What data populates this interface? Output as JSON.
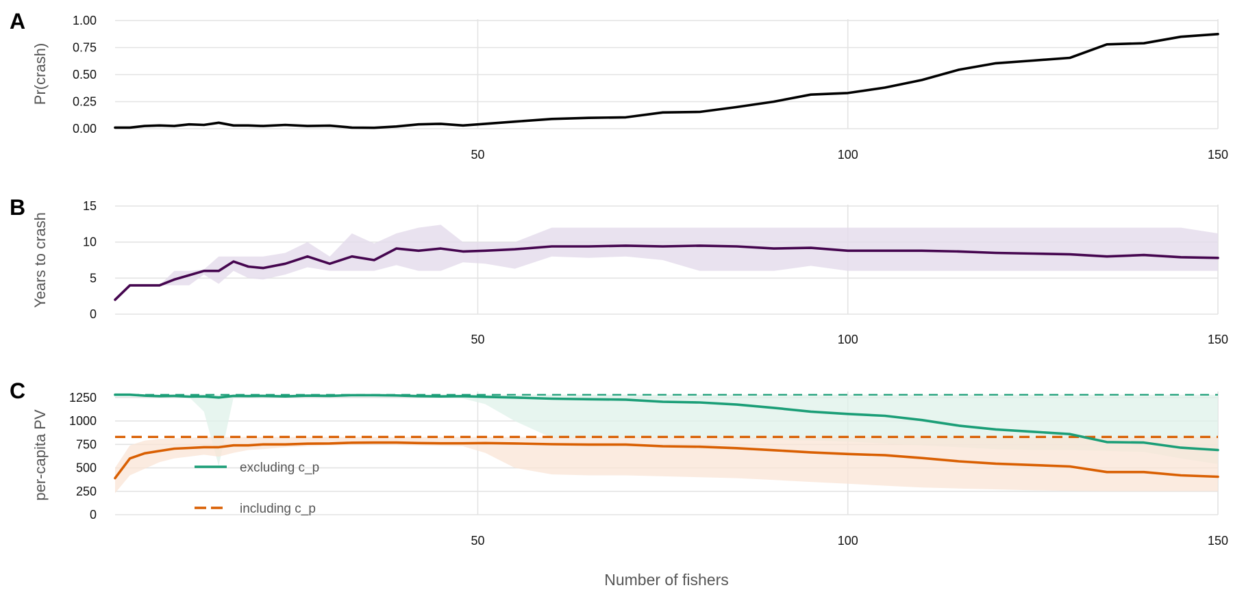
{
  "figure": {
    "xlabel": "Number of fishers"
  },
  "chart_data": [
    {
      "panel": "A",
      "type": "line",
      "ylabel": "Pr(crash)",
      "xlim": [
        1,
        150
      ],
      "ylim": [
        0,
        1
      ],
      "xticks": [
        50,
        100,
        150
      ],
      "yticks": [
        0,
        0.25,
        0.5,
        0.75,
        1.0
      ],
      "ytick_labels": [
        "0.00",
        "0.25",
        "0.50",
        "0.75",
        "1.00"
      ],
      "grid": true,
      "color": "#000000",
      "x": [
        1,
        3,
        5,
        7,
        9,
        11,
        13,
        15,
        17,
        19,
        21,
        24,
        27,
        30,
        33,
        36,
        39,
        42,
        45,
        48,
        51,
        55,
        60,
        65,
        70,
        75,
        80,
        85,
        90,
        95,
        100,
        105,
        110,
        115,
        120,
        125,
        130,
        135,
        140,
        145,
        150
      ],
      "y": [
        0.01,
        0.01,
        0.025,
        0.03,
        0.025,
        0.04,
        0.035,
        0.055,
        0.03,
        0.03,
        0.025,
        0.035,
        0.025,
        0.028,
        0.01,
        0.008,
        0.02,
        0.04,
        0.045,
        0.03,
        0.045,
        0.065,
        0.09,
        0.1,
        0.105,
        0.15,
        0.155,
        0.2,
        0.25,
        0.315,
        0.33,
        0.38,
        0.45,
        0.545,
        0.605,
        0.63,
        0.655,
        0.78,
        0.79,
        0.85,
        0.875
      ]
    },
    {
      "panel": "B",
      "type": "line",
      "ylabel": "Years to crash",
      "xlim": [
        1,
        150
      ],
      "ylim": [
        0,
        15
      ],
      "xticks": [
        50,
        100,
        150
      ],
      "yticks": [
        0,
        5,
        10,
        15
      ],
      "ytick_labels": [
        "0",
        "5",
        "10",
        "15"
      ],
      "grid": true,
      "color": "#45064f",
      "band_color": "#e4dbeb",
      "x": [
        1,
        3,
        5,
        7,
        9,
        11,
        13,
        15,
        17,
        19,
        21,
        24,
        27,
        30,
        33,
        36,
        39,
        42,
        45,
        48,
        51,
        55,
        60,
        65,
        70,
        75,
        80,
        85,
        90,
        95,
        100,
        105,
        110,
        115,
        120,
        125,
        130,
        135,
        140,
        145,
        150
      ],
      "y": [
        2,
        4,
        4,
        4,
        4.8,
        5.4,
        6,
        6,
        7.3,
        6.6,
        6.4,
        7,
        8,
        7,
        8,
        7.5,
        9.1,
        8.8,
        9.1,
        8.7,
        8.8,
        9,
        9.4,
        9.4,
        9.5,
        9.4,
        9.5,
        9.4,
        9.1,
        9.2,
        8.8,
        8.8,
        8.8,
        8.7,
        8.5,
        8.4,
        8.3,
        8,
        8.2,
        7.9,
        7.8
      ],
      "lower": [
        2,
        4,
        4,
        4,
        4,
        4,
        5.5,
        4.2,
        6,
        5,
        4.8,
        5.5,
        6.5,
        6,
        6,
        6,
        6.8,
        6,
        6,
        7.2,
        7,
        6.3,
        8,
        7.8,
        8,
        7.5,
        6,
        6,
        6,
        6.7,
        6,
        6,
        6,
        6,
        6,
        6,
        6,
        6,
        6,
        6,
        6
      ],
      "upper": [
        2,
        4,
        4,
        4,
        6,
        6,
        6.2,
        8,
        8,
        8,
        8,
        8.5,
        10,
        8,
        11.2,
        9.8,
        11.2,
        12,
        12.4,
        10,
        10,
        10,
        12,
        12,
        12,
        12,
        12,
        12,
        12,
        12,
        12,
        12,
        12,
        12,
        12,
        12,
        12,
        12,
        12,
        12,
        11.2
      ]
    },
    {
      "panel": "C",
      "type": "line",
      "ylabel": "per-capita PV",
      "xlim": [
        1,
        150
      ],
      "ylim": [
        0,
        1300
      ],
      "xticks": [
        50,
        100,
        150
      ],
      "yticks": [
        0,
        250,
        500,
        750,
        1000,
        1250
      ],
      "ytick_labels": [
        "0",
        "250",
        "500",
        "750",
        "1000",
        "1250"
      ],
      "grid": true,
      "legend_position": "bottom-left",
      "series": [
        {
          "name": "excluding c_p",
          "color": "#1b9e77",
          "band_color": "#dff2ea",
          "reference": 1280,
          "x": [
            1,
            3,
            5,
            7,
            9,
            11,
            13,
            15,
            17,
            19,
            21,
            24,
            27,
            30,
            33,
            36,
            39,
            42,
            45,
            48,
            51,
            55,
            60,
            65,
            70,
            75,
            80,
            85,
            90,
            95,
            100,
            105,
            110,
            115,
            120,
            125,
            130,
            135,
            140,
            145,
            150
          ],
          "y": [
            1280,
            1280,
            1270,
            1265,
            1268,
            1260,
            1262,
            1250,
            1268,
            1266,
            1268,
            1262,
            1270,
            1268,
            1275,
            1275,
            1272,
            1265,
            1262,
            1265,
            1258,
            1250,
            1238,
            1232,
            1228,
            1205,
            1198,
            1175,
            1140,
            1100,
            1075,
            1055,
            1010,
            950,
            910,
            885,
            860,
            775,
            770,
            715,
            690
          ],
          "lower": [
            1280,
            1280,
            1268,
            1262,
            1262,
            1255,
            1100,
            520,
            1250,
            1250,
            1255,
            1250,
            1260,
            1255,
            1265,
            1265,
            1262,
            1250,
            1245,
            1240,
            1180,
            1000,
            820,
            820,
            820,
            820,
            820,
            810,
            800,
            790,
            780,
            760,
            740,
            720,
            700,
            690,
            690,
            680,
            670,
            600,
            540
          ],
          "upper": [
            1280,
            1280,
            1280,
            1280,
            1280,
            1280,
            1280,
            1280,
            1280,
            1280,
            1280,
            1280,
            1280,
            1280,
            1280,
            1280,
            1280,
            1280,
            1280,
            1280,
            1280,
            1280,
            1280,
            1280,
            1280,
            1280,
            1280,
            1280,
            1280,
            1280,
            1280,
            1280,
            1280,
            1280,
            1280,
            1280,
            1280,
            1280,
            1280,
            1280,
            1280
          ]
        },
        {
          "name": "including c_p",
          "color": "#d95f02",
          "band_color": "#fae4d6",
          "reference": 830,
          "x": [
            1,
            3,
            5,
            7,
            9,
            11,
            13,
            15,
            17,
            19,
            21,
            24,
            27,
            30,
            33,
            36,
            39,
            42,
            45,
            48,
            51,
            55,
            60,
            65,
            70,
            75,
            80,
            85,
            90,
            95,
            100,
            105,
            110,
            115,
            120,
            125,
            130,
            135,
            140,
            145,
            150
          ],
          "y": [
            390,
            600,
            655,
            680,
            705,
            712,
            720,
            720,
            740,
            740,
            750,
            750,
            758,
            760,
            768,
            770,
            770,
            765,
            762,
            762,
            765,
            760,
            752,
            748,
            748,
            730,
            725,
            710,
            688,
            665,
            648,
            635,
            605,
            570,
            545,
            530,
            515,
            455,
            455,
            420,
            405
          ],
          "lower": [
            230,
            420,
            490,
            560,
            600,
            620,
            640,
            620,
            660,
            690,
            700,
            720,
            730,
            740,
            745,
            750,
            745,
            740,
            735,
            730,
            660,
            500,
            430,
            420,
            420,
            410,
            400,
            390,
            370,
            350,
            330,
            310,
            290,
            280,
            270,
            260,
            255,
            250,
            250,
            250,
            250
          ],
          "upper": [
            500,
            740,
            790,
            810,
            815,
            820,
            830,
            830,
            830,
            830,
            830,
            830,
            830,
            830,
            830,
            830,
            830,
            830,
            830,
            830,
            830,
            830,
            830,
            830,
            830,
            830,
            830,
            830,
            830,
            830,
            830,
            830,
            830,
            830,
            830,
            830,
            830,
            830,
            830,
            830,
            830
          ]
        }
      ]
    }
  ]
}
